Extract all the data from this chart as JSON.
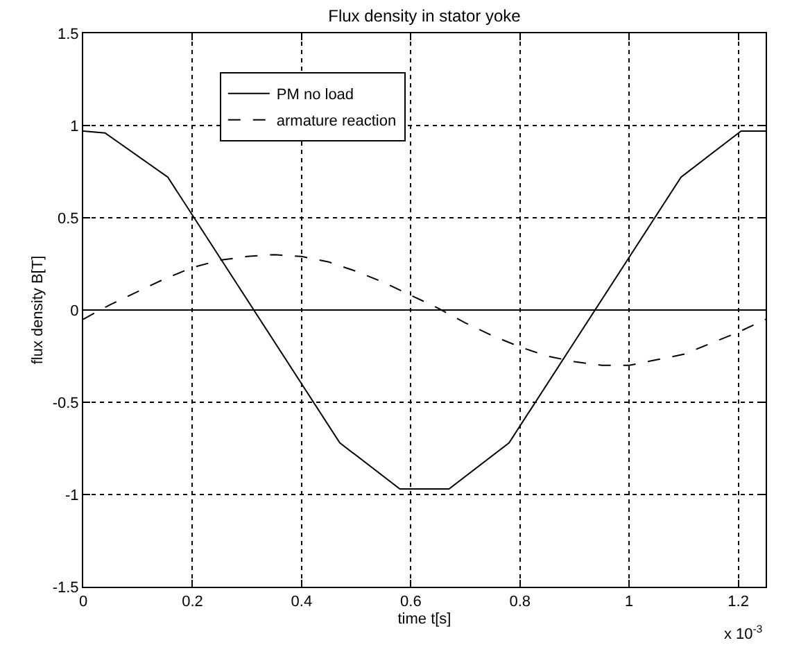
{
  "chart_data": {
    "type": "line",
    "title": "Flux density in stator yoke",
    "xlabel": "time t[s]",
    "ylabel": "flux density B[T]",
    "annotations": [
      "x 10$^{-3}$"
    ],
    "series": [
      {
        "name": "PM no load",
        "color": "#000000",
        "line_style": "solid",
        "x": [
          0,
          0.04,
          0.155,
          0.47,
          0.58,
          0.67,
          0.78,
          1.095,
          1.205,
          1.25
        ],
        "values": [
          0.97,
          0.96,
          0.72,
          -0.72,
          -0.97,
          -0.97,
          -0.72,
          0.72,
          0.97,
          0.97
        ]
      },
      {
        "name": "armature reaction",
        "color": "#000000",
        "line_style": "dashed",
        "x": [
          0,
          0.05,
          0.1,
          0.15,
          0.2,
          0.25,
          0.3,
          0.35,
          0.4,
          0.45,
          0.5,
          0.55,
          0.6,
          0.65,
          0.7,
          0.75,
          0.8,
          0.85,
          0.9,
          0.95,
          1.0,
          1.05,
          1.1,
          1.15,
          1.2,
          1.25
        ],
        "values": [
          -0.05,
          0.03,
          0.1,
          0.17,
          0.23,
          0.27,
          0.29,
          0.3,
          0.29,
          0.26,
          0.21,
          0.15,
          0.08,
          0.01,
          -0.07,
          -0.14,
          -0.2,
          -0.25,
          -0.28,
          -0.3,
          -0.3,
          -0.27,
          -0.24,
          -0.18,
          -0.12,
          -0.05
        ]
      }
    ],
    "ref_lines": [
      {
        "axis": "y",
        "value": 0,
        "color": "#000000"
      }
    ],
    "xlim": [
      0,
      1.25
    ],
    "xticks": [
      0,
      0.2,
      0.4,
      0.6,
      0.8,
      1,
      1.2
    ],
    "ylim": [
      -1.5,
      1.5
    ],
    "yticks": [
      -1.5,
      -1,
      -0.5,
      0,
      0.5,
      1,
      1.5
    ],
    "grid": true,
    "legend": "top left",
    "marker": "none"
  }
}
